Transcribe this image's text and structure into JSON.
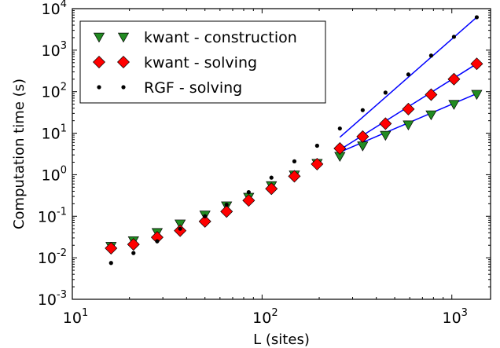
{
  "chart_data": {
    "type": "scatter",
    "xscale": "log",
    "yscale": "log",
    "xlabel": "L (sites)",
    "ylabel": "Computation time (s)",
    "xlim": [
      10,
      1600
    ],
    "ylim": [
      0.001,
      10000
    ],
    "grid": false,
    "legend_position": "top-left",
    "x_ticks": [
      {
        "base": "10",
        "exp": "1",
        "value": 10
      },
      {
        "base": "10",
        "exp": "2",
        "value": 100
      },
      {
        "base": "10",
        "exp": "3",
        "value": 1000
      }
    ],
    "y_ticks": [
      {
        "base": "10",
        "exp": "-3",
        "value": 0.001
      },
      {
        "base": "10",
        "exp": "-2",
        "value": 0.01
      },
      {
        "base": "10",
        "exp": "-1",
        "value": 0.1
      },
      {
        "base": "10",
        "exp": "0",
        "value": 1
      },
      {
        "base": "10",
        "exp": "1",
        "value": 10
      },
      {
        "base": "10",
        "exp": "2",
        "value": 100
      },
      {
        "base": "10",
        "exp": "3",
        "value": 1000
      },
      {
        "base": "10",
        "exp": "4",
        "value": 10000
      }
    ],
    "series": [
      {
        "name": "kwant - construction",
        "marker": "triangle-down",
        "color": "#228b22",
        "x": [
          16,
          21,
          28,
          37,
          50,
          65,
          85,
          112,
          148,
          195,
          257,
          339,
          447,
          590,
          778,
          1026,
          1353
        ],
        "y": [
          0.019,
          0.026,
          0.041,
          0.066,
          0.108,
          0.18,
          0.29,
          0.55,
          1.0,
          1.9,
          2.8,
          5.0,
          9.0,
          16,
          28,
          50,
          87
        ]
      },
      {
        "name": "kwant - solving",
        "marker": "diamond",
        "color": "#ff0000",
        "x": [
          16,
          21,
          28,
          37,
          50,
          65,
          85,
          112,
          148,
          195,
          257,
          339,
          447,
          590,
          778,
          1026,
          1353
        ],
        "y": [
          0.017,
          0.021,
          0.031,
          0.045,
          0.075,
          0.13,
          0.24,
          0.46,
          0.92,
          1.8,
          4.3,
          8.3,
          17,
          38,
          85,
          200,
          470
        ]
      },
      {
        "name": "RGF - solving",
        "marker": "dot",
        "color": "#000000",
        "x": [
          16,
          21,
          28,
          37,
          50,
          65,
          85,
          112,
          148,
          195,
          257,
          339,
          447,
          590,
          778,
          1026,
          1353
        ],
        "y": [
          0.0075,
          0.013,
          0.025,
          0.05,
          0.1,
          0.19,
          0.38,
          0.85,
          2.1,
          5.0,
          13,
          36,
          95,
          260,
          740,
          2100,
          6200
        ]
      }
    ],
    "fit_lines": [
      {
        "color": "#0000ff",
        "x": [
          257,
          1353
        ],
        "y": [
          8.0,
          6200
        ]
      },
      {
        "color": "#0000ff",
        "x": [
          257,
          1353
        ],
        "y": [
          4.0,
          470
        ]
      },
      {
        "color": "#0000ff",
        "x": [
          257,
          1353
        ],
        "y": [
          3.5,
          90
        ]
      }
    ]
  }
}
